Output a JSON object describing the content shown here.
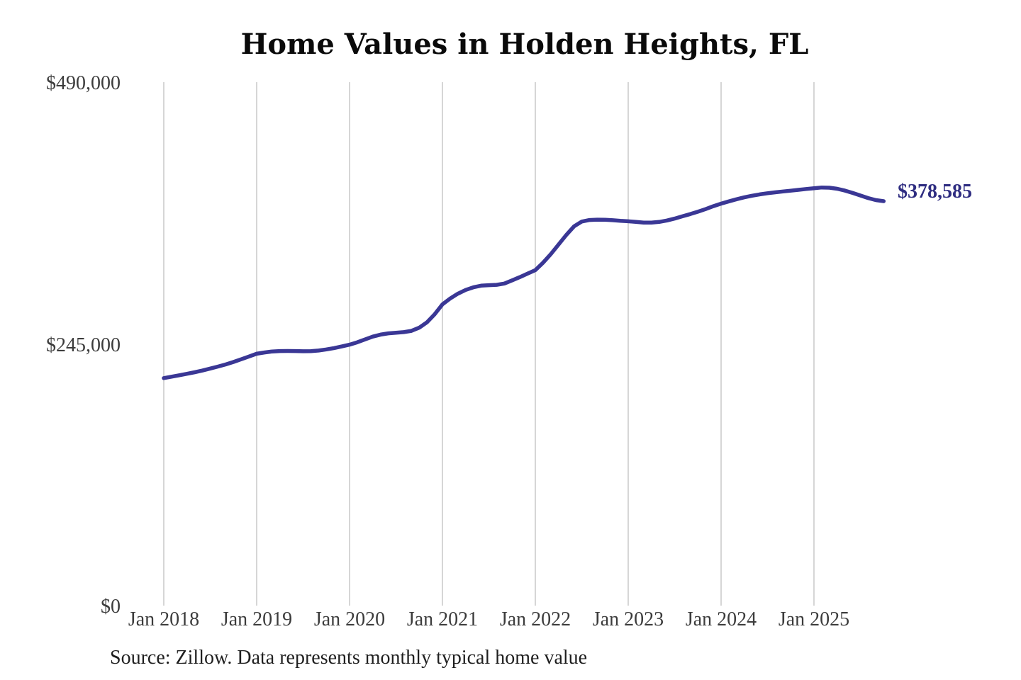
{
  "chart_data": {
    "type": "line",
    "title": "Home Values in Holden Heights, FL",
    "source_note": "Source: Zillow. Data represents monthly typical home value",
    "end_label": "$378,585",
    "latest_value": 378585,
    "frequency": "monthly",
    "x_start": "2018-01",
    "x_end": "2025-10",
    "ylim": [
      0,
      490000
    ],
    "grid": "vertical-only",
    "legend": "none",
    "x_ticks": [
      "Jan 2018",
      "Jan 2019",
      "Jan 2020",
      "Jan 2021",
      "Jan 2022",
      "Jan 2023",
      "Jan 2024",
      "Jan 2025"
    ],
    "y_ticks": [
      {
        "value": 0,
        "label": "$0"
      },
      {
        "value": 245000,
        "label": "$245,000"
      },
      {
        "value": 490000,
        "label": "$490,000"
      }
    ],
    "colors": {
      "line": "#3a3795",
      "end_label": "#2f2d81",
      "grid": "#cbcbcb",
      "axis_text": "#3c3c3c",
      "title_text": "#0a0a0a",
      "source_text": "#1f1f1f"
    },
    "series": [
      {
        "name": "Typical home value",
        "values": [
          213000,
          214300,
          215600,
          217000,
          218500,
          220100,
          221900,
          223800,
          225800,
          228100,
          230600,
          233200,
          235800,
          237000,
          237900,
          238300,
          238400,
          238300,
          238100,
          238200,
          238800,
          239800,
          241100,
          242600,
          244300,
          246500,
          249200,
          251800,
          253700,
          254900,
          255400,
          256000,
          257200,
          260200,
          265200,
          272800,
          282000,
          287500,
          292000,
          295500,
          298000,
          299500,
          300000,
          300300,
          301500,
          304500,
          307500,
          310800,
          314000,
          321000,
          329000,
          338000,
          347000,
          355000,
          359500,
          361000,
          361300,
          361200,
          360800,
          360200,
          359800,
          359200,
          358600,
          358500,
          359200,
          360500,
          362300,
          364400,
          366500,
          368700,
          371200,
          373900,
          376300,
          378400,
          380400,
          382200,
          383700,
          385000,
          386000,
          386900,
          387700,
          388400,
          389200,
          390000,
          390700,
          391400,
          391200,
          390200,
          388500,
          386300,
          383900,
          381500,
          379600,
          378585
        ]
      }
    ]
  }
}
